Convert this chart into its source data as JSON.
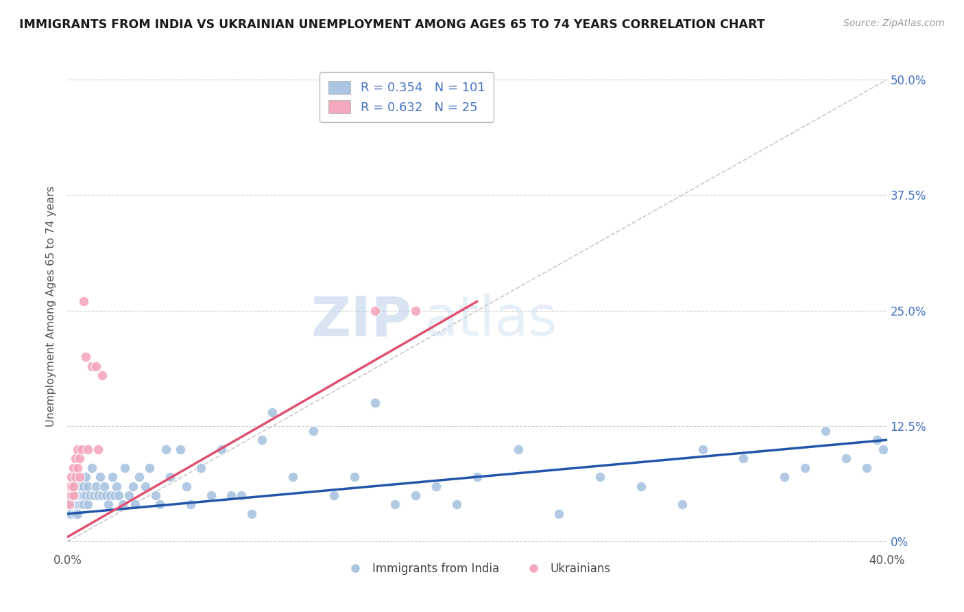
{
  "title": "IMMIGRANTS FROM INDIA VS UKRAINIAN UNEMPLOYMENT AMONG AGES 65 TO 74 YEARS CORRELATION CHART",
  "source": "Source: ZipAtlas.com",
  "ylabel": "Unemployment Among Ages 65 to 74 years",
  "xlim": [
    0.0,
    0.4
  ],
  "ylim": [
    -0.01,
    0.52
  ],
  "india_color": "#aac4e2",
  "ukraine_color": "#f4a8bc",
  "india_R": 0.354,
  "india_N": 101,
  "ukraine_R": 0.632,
  "ukraine_N": 25,
  "india_scatter_x": [
    0.001,
    0.001,
    0.001,
    0.001,
    0.002,
    0.002,
    0.002,
    0.002,
    0.002,
    0.003,
    0.003,
    0.003,
    0.003,
    0.003,
    0.004,
    0.004,
    0.004,
    0.004,
    0.004,
    0.004,
    0.005,
    0.005,
    0.005,
    0.005,
    0.005,
    0.006,
    0.006,
    0.006,
    0.006,
    0.007,
    0.007,
    0.007,
    0.008,
    0.008,
    0.008,
    0.009,
    0.009,
    0.01,
    0.01,
    0.011,
    0.012,
    0.013,
    0.014,
    0.015,
    0.016,
    0.017,
    0.018,
    0.019,
    0.02,
    0.021,
    0.022,
    0.023,
    0.024,
    0.025,
    0.027,
    0.028,
    0.03,
    0.032,
    0.033,
    0.035,
    0.038,
    0.04,
    0.043,
    0.045,
    0.048,
    0.05,
    0.055,
    0.058,
    0.06,
    0.065,
    0.07,
    0.075,
    0.08,
    0.085,
    0.09,
    0.095,
    0.1,
    0.11,
    0.12,
    0.13,
    0.14,
    0.15,
    0.16,
    0.17,
    0.18,
    0.19,
    0.2,
    0.22,
    0.24,
    0.26,
    0.28,
    0.3,
    0.31,
    0.33,
    0.35,
    0.36,
    0.37,
    0.38,
    0.39,
    0.395,
    0.398
  ],
  "india_scatter_y": [
    0.05,
    0.03,
    0.04,
    0.06,
    0.04,
    0.05,
    0.06,
    0.03,
    0.05,
    0.04,
    0.06,
    0.05,
    0.04,
    0.07,
    0.04,
    0.05,
    0.03,
    0.06,
    0.04,
    0.05,
    0.04,
    0.06,
    0.05,
    0.03,
    0.05,
    0.05,
    0.04,
    0.06,
    0.05,
    0.04,
    0.05,
    0.06,
    0.05,
    0.04,
    0.06,
    0.05,
    0.07,
    0.04,
    0.06,
    0.05,
    0.08,
    0.05,
    0.06,
    0.05,
    0.07,
    0.05,
    0.06,
    0.05,
    0.04,
    0.05,
    0.07,
    0.05,
    0.06,
    0.05,
    0.04,
    0.08,
    0.05,
    0.06,
    0.04,
    0.07,
    0.06,
    0.08,
    0.05,
    0.04,
    0.1,
    0.07,
    0.1,
    0.06,
    0.04,
    0.08,
    0.05,
    0.1,
    0.05,
    0.05,
    0.03,
    0.11,
    0.14,
    0.07,
    0.12,
    0.05,
    0.07,
    0.15,
    0.04,
    0.05,
    0.06,
    0.04,
    0.07,
    0.1,
    0.03,
    0.07,
    0.06,
    0.04,
    0.1,
    0.09,
    0.07,
    0.08,
    0.12,
    0.09,
    0.08,
    0.11,
    0.1
  ],
  "ukraine_scatter_x": [
    0.001,
    0.001,
    0.001,
    0.002,
    0.002,
    0.002,
    0.003,
    0.003,
    0.003,
    0.004,
    0.004,
    0.005,
    0.005,
    0.006,
    0.006,
    0.007,
    0.008,
    0.009,
    0.01,
    0.012,
    0.014,
    0.015,
    0.017,
    0.15,
    0.17
  ],
  "ukraine_scatter_y": [
    0.05,
    0.04,
    0.06,
    0.05,
    0.07,
    0.06,
    0.05,
    0.08,
    0.06,
    0.07,
    0.09,
    0.08,
    0.1,
    0.07,
    0.09,
    0.1,
    0.26,
    0.2,
    0.1,
    0.19,
    0.19,
    0.1,
    0.18,
    0.25,
    0.25
  ],
  "india_trend_x": [
    0.0,
    0.4
  ],
  "india_trend_y": [
    0.03,
    0.11
  ],
  "ukraine_trend_x": [
    0.0,
    0.2
  ],
  "ukraine_trend_y": [
    0.005,
    0.26
  ],
  "diag_line_x": [
    0.0,
    0.4
  ],
  "diag_line_y": [
    0.0,
    0.5
  ],
  "watermark_zip": "ZIP",
  "watermark_atlas": "atlas",
  "legend_india_label": "Immigrants from India",
  "legend_ukraine_label": "Ukrainians",
  "background_color": "#ffffff",
  "grid_color": "#cccccc",
  "title_color": "#1a1a1a",
  "right_axis_color": "#4472c4",
  "legend_R_color": "#4472c4",
  "ytick_vals": [
    0.0,
    0.125,
    0.25,
    0.375,
    0.5
  ],
  "ytick_labels": [
    "0%",
    "12.5%",
    "25.0%",
    "37.5%",
    "50.0%"
  ],
  "xtick_vals": [
    0.0,
    0.4
  ],
  "xtick_labels": [
    "0.0%",
    "40.0%"
  ]
}
